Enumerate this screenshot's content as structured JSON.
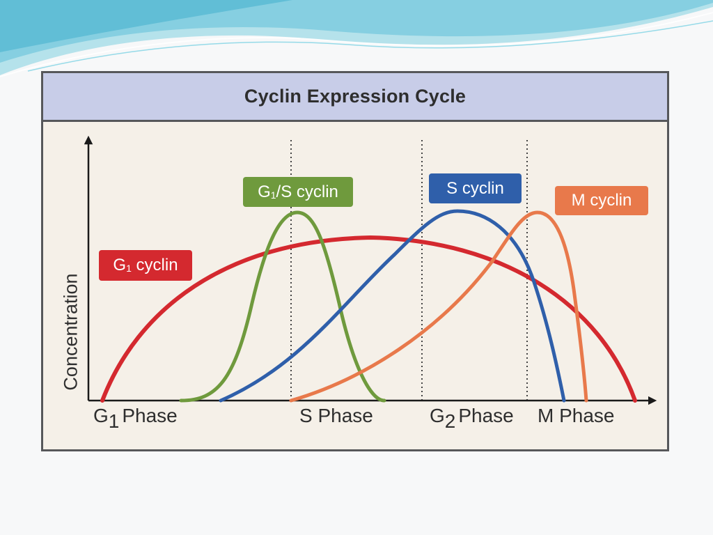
{
  "title": "Cyclin Expression Cycle",
  "y_axis_label": "Concentration",
  "phases": [
    {
      "prefix": "G",
      "sub": "1",
      "suffix": "Phase"
    },
    {
      "prefix": "S",
      "sub": "",
      "suffix": "Phase"
    },
    {
      "prefix": "G",
      "sub": "2",
      "suffix": "Phase"
    },
    {
      "prefix": "M",
      "sub": "",
      "suffix": "Phase"
    }
  ],
  "cyclins": {
    "g1": {
      "prefix": "G",
      "sub": "1",
      "suffix": " cyclin",
      "color": "#d4292f"
    },
    "g1s": {
      "prefix": "G",
      "sub": "1",
      "suffix": "/S cyclin",
      "color": "#6f9a3d"
    },
    "s": {
      "prefix": "S cyclin",
      "sub": "",
      "suffix": "",
      "color": "#2f5faa"
    },
    "m": {
      "prefix": "M cyclin",
      "sub": "",
      "suffix": "",
      "color": "#e8794b"
    }
  },
  "colors": {
    "frame": "#56575a",
    "title_bar": "#c8cde8",
    "panel": "#f5f0e8",
    "axis": "#1a1a1a"
  }
}
